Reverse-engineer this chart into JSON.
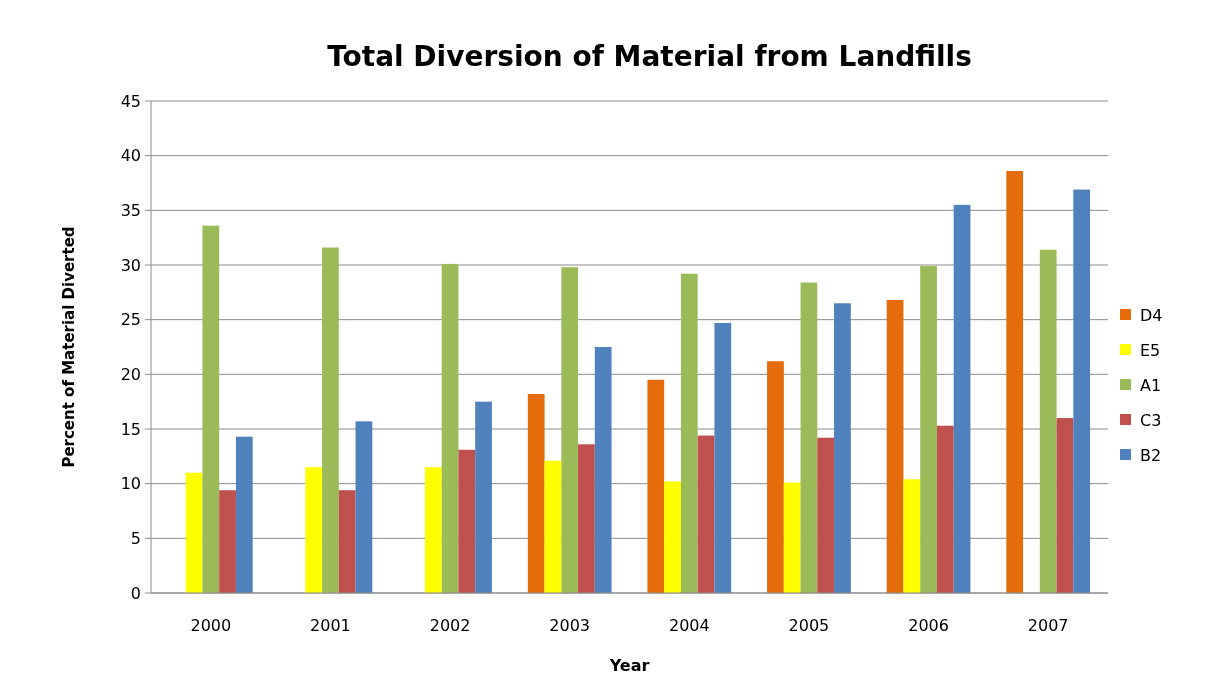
{
  "chart_data": {
    "type": "bar",
    "title": "Total Diversion of Material from Landfills",
    "xlabel": "Year",
    "ylabel": "Percent of Material Diverted",
    "categories": [
      "2000",
      "2001",
      "2002",
      "2003",
      "2004",
      "2005",
      "2006",
      "2007"
    ],
    "series": [
      {
        "name": "D4",
        "color": "#e46c0a",
        "values": [
          null,
          null,
          null,
          18.2,
          19.5,
          21.2,
          26.8,
          38.6
        ]
      },
      {
        "name": "E5",
        "color": "#ffff00",
        "values": [
          11.0,
          11.5,
          11.5,
          12.1,
          10.2,
          10.1,
          10.4,
          null
        ]
      },
      {
        "name": "A1",
        "color": "#9bbb59",
        "values": [
          33.6,
          31.6,
          30.1,
          29.8,
          29.2,
          28.4,
          29.9,
          31.4
        ]
      },
      {
        "name": "C3",
        "color": "#c0504d",
        "values": [
          9.4,
          9.4,
          13.1,
          13.6,
          14.4,
          14.2,
          15.3,
          16.0
        ]
      },
      {
        "name": "B2",
        "color": "#4f81bd",
        "values": [
          14.3,
          15.7,
          17.5,
          22.5,
          24.7,
          26.5,
          35.5,
          36.9
        ]
      }
    ],
    "ylim": [
      0,
      45
    ],
    "yticks": [
      0,
      5,
      10,
      15,
      20,
      25,
      30,
      35,
      40,
      45
    ],
    "grid": "y",
    "legend": "right"
  }
}
